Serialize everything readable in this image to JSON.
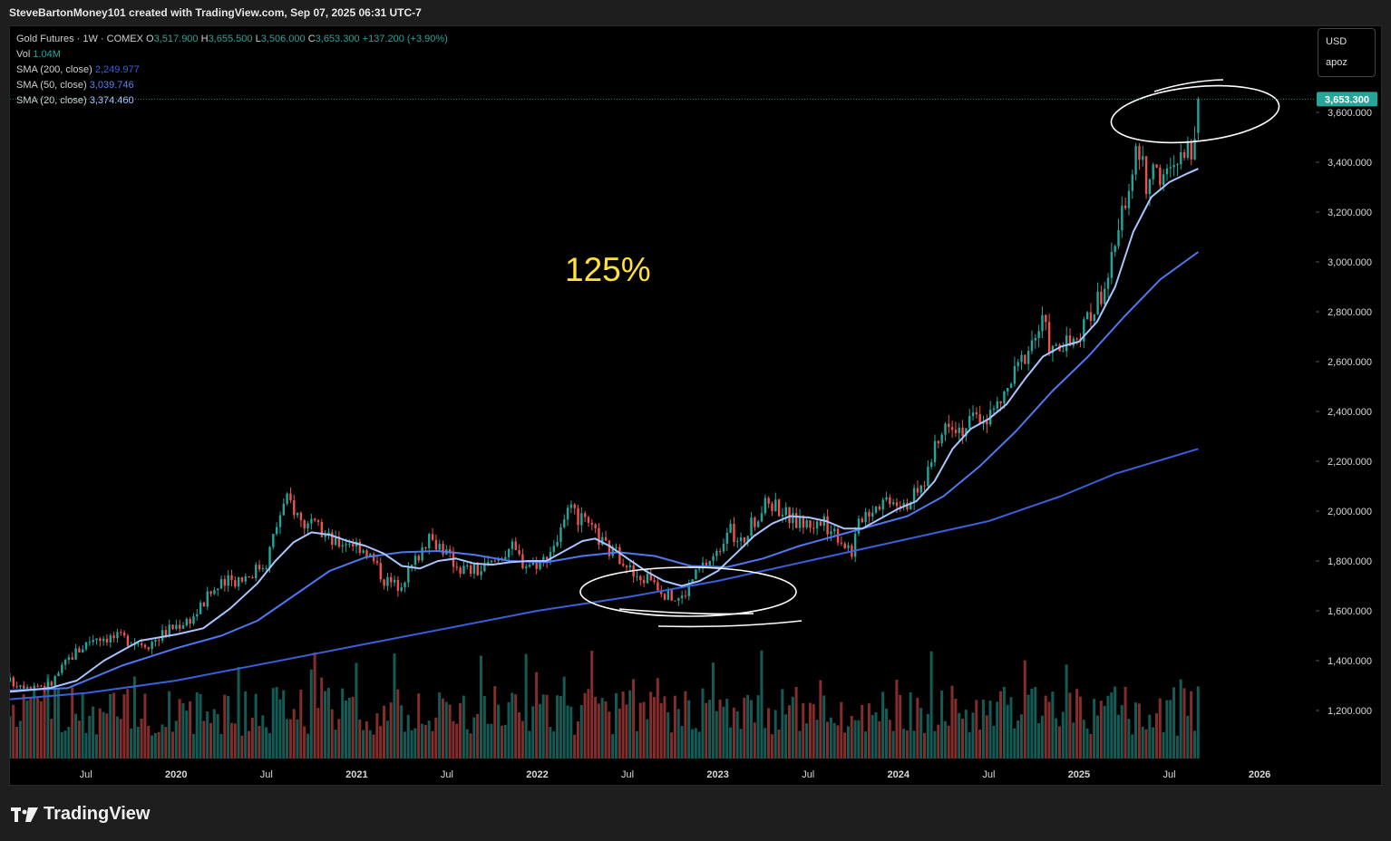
{
  "header": {
    "text": "SteveBartonMoney101 created with TradingView.com, Sep 07, 2025 06:31 UTC-7"
  },
  "legend": {
    "symbol": "Gold Futures · 1W · COMEX",
    "o_label": "O",
    "o_value": "3,517.900",
    "h_label": "H",
    "h_value": "3,655.500",
    "l_label": "L",
    "l_value": "3,506.000",
    "c_label": "C",
    "c_value": "3,653.300",
    "change": "+137.200 (+3.90%)",
    "vol_label": "Vol",
    "vol_value": "1.04M",
    "sma200_label": "SMA (200, close)",
    "sma200_value": "2,249.977",
    "sma50_label": "SMA (50, close)",
    "sma50_value": "3,039.746",
    "sma20_label": "SMA (20, close)",
    "sma20_value": "3,374.460"
  },
  "currency": {
    "code": "USD",
    "unit": "apoz"
  },
  "annotation": {
    "text": "125%"
  },
  "footer": {
    "brand": "TradingView"
  },
  "colors": {
    "up": "#26a69a",
    "down": "#ef5350",
    "sma200": "#3a5fd9",
    "sma50": "#4f78f0",
    "sma20": "#a9c6ff",
    "annotation": "#ffe13a",
    "price_label_bg": "#26a69a"
  },
  "chart_data": {
    "type": "candlestick",
    "timeframe": "1W",
    "current_price_label": "3,653.300",
    "ylim": [
      1000,
      3900
    ],
    "y_ticks": [
      {
        "value": 3600,
        "label": "3,600.000"
      },
      {
        "value": 3400,
        "label": "3,400.000"
      },
      {
        "value": 3200,
        "label": "3,200.000"
      },
      {
        "value": 3000,
        "label": "3,000.000"
      },
      {
        "value": 2800,
        "label": "2,800.000"
      },
      {
        "value": 2600,
        "label": "2,600.000"
      },
      {
        "value": 2400,
        "label": "2,400.000"
      },
      {
        "value": 2200,
        "label": "2,200.000"
      },
      {
        "value": 2000,
        "label": "2,000.000"
      },
      {
        "value": 1800,
        "label": "1,800.000"
      },
      {
        "value": 1600,
        "label": "1,600.000"
      },
      {
        "value": 1400,
        "label": "1,400.000"
      },
      {
        "value": 1200,
        "label": "1,200.000"
      }
    ],
    "x_ticks": [
      {
        "t": 2019.5,
        "label": "Jul",
        "bold": false
      },
      {
        "t": 2020.0,
        "label": "2020",
        "bold": true
      },
      {
        "t": 2020.5,
        "label": "Jul",
        "bold": false
      },
      {
        "t": 2021.0,
        "label": "2021",
        "bold": true
      },
      {
        "t": 2021.5,
        "label": "Jul",
        "bold": false
      },
      {
        "t": 2022.0,
        "label": "2022",
        "bold": true
      },
      {
        "t": 2022.5,
        "label": "Jul",
        "bold": false
      },
      {
        "t": 2023.0,
        "label": "2023",
        "bold": true
      },
      {
        "t": 2023.5,
        "label": "Jul",
        "bold": false
      },
      {
        "t": 2024.0,
        "label": "2024",
        "bold": true
      },
      {
        "t": 2024.5,
        "label": "Jul",
        "bold": false
      },
      {
        "t": 2025.0,
        "label": "2025",
        "bold": true
      },
      {
        "t": 2025.5,
        "label": "Jul",
        "bold": false
      },
      {
        "t": 2026.0,
        "label": "2026",
        "bold": true
      }
    ],
    "xlim": [
      2019.08,
      2026.1
    ],
    "close_path": [
      [
        2019.08,
        1315
      ],
      [
        2019.3,
        1300
      ],
      [
        2019.42,
        1420
      ],
      [
        2019.55,
        1500
      ],
      [
        2019.7,
        1490
      ],
      [
        2019.85,
        1470
      ],
      [
        2019.97,
        1530
      ],
      [
        2020.1,
        1580
      ],
      [
        2020.2,
        1680
      ],
      [
        2020.3,
        1720
      ],
      [
        2020.4,
        1745
      ],
      [
        2020.5,
        1800
      ],
      [
        2020.58,
        2000
      ],
      [
        2020.62,
        2050
      ],
      [
        2020.7,
        1955
      ],
      [
        2020.8,
        1920
      ],
      [
        2020.88,
        1870
      ],
      [
        2020.95,
        1885
      ],
      [
        2021.05,
        1850
      ],
      [
        2021.15,
        1730
      ],
      [
        2021.22,
        1700
      ],
      [
        2021.3,
        1770
      ],
      [
        2021.38,
        1880
      ],
      [
        2021.45,
        1875
      ],
      [
        2021.52,
        1810
      ],
      [
        2021.58,
        1770
      ],
      [
        2021.68,
        1760
      ],
      [
        2021.75,
        1790
      ],
      [
        2021.85,
        1860
      ],
      [
        2021.93,
        1790
      ],
      [
        2022.03,
        1800
      ],
      [
        2022.12,
        1900
      ],
      [
        2022.18,
        2000
      ],
      [
        2022.26,
        1950
      ],
      [
        2022.33,
        1900
      ],
      [
        2022.4,
        1840
      ],
      [
        2022.48,
        1810
      ],
      [
        2022.55,
        1720
      ],
      [
        2022.63,
        1740
      ],
      [
        2022.72,
        1660
      ],
      [
        2022.8,
        1650
      ],
      [
        2022.86,
        1730
      ],
      [
        2022.93,
        1790
      ],
      [
        2023.0,
        1830
      ],
      [
        2023.05,
        1940
      ],
      [
        2023.12,
        1860
      ],
      [
        2023.2,
        1960
      ],
      [
        2023.28,
        2040
      ],
      [
        2023.35,
        2010
      ],
      [
        2023.42,
        1960
      ],
      [
        2023.5,
        1950
      ],
      [
        2023.58,
        1950
      ],
      [
        2023.65,
        1920
      ],
      [
        2023.74,
        1840
      ],
      [
        2023.8,
        1990
      ],
      [
        2023.88,
        2030
      ],
      [
        2023.95,
        2060
      ],
      [
        2024.05,
        2040
      ],
      [
        2024.12,
        2080
      ],
      [
        2024.2,
        2240
      ],
      [
        2024.28,
        2380
      ],
      [
        2024.35,
        2330
      ],
      [
        2024.42,
        2370
      ],
      [
        2024.5,
        2380
      ],
      [
        2024.58,
        2450
      ],
      [
        2024.65,
        2560
      ],
      [
        2024.72,
        2660
      ],
      [
        2024.8,
        2760
      ],
      [
        2024.85,
        2640
      ],
      [
        2024.92,
        2660
      ],
      [
        2025.0,
        2680
      ],
      [
        2025.08,
        2820
      ],
      [
        2025.15,
        2920
      ],
      [
        2025.22,
        3100
      ],
      [
        2025.28,
        3350
      ],
      [
        2025.33,
        3440
      ],
      [
        2025.38,
        3300
      ],
      [
        2025.43,
        3360
      ],
      [
        2025.5,
        3340
      ],
      [
        2025.55,
        3400
      ],
      [
        2025.62,
        3450
      ],
      [
        2025.66,
        3653
      ]
    ],
    "sma20_path": [
      [
        2019.08,
        1275
      ],
      [
        2019.3,
        1290
      ],
      [
        2019.45,
        1320
      ],
      [
        2019.6,
        1400
      ],
      [
        2019.8,
        1480
      ],
      [
        2020.0,
        1505
      ],
      [
        2020.15,
        1530
      ],
      [
        2020.3,
        1610
      ],
      [
        2020.45,
        1710
      ],
      [
        2020.55,
        1800
      ],
      [
        2020.65,
        1875
      ],
      [
        2020.75,
        1915
      ],
      [
        2020.85,
        1905
      ],
      [
        2020.95,
        1880
      ],
      [
        2021.05,
        1860
      ],
      [
        2021.15,
        1830
      ],
      [
        2021.25,
        1780
      ],
      [
        2021.35,
        1770
      ],
      [
        2021.45,
        1800
      ],
      [
        2021.55,
        1810
      ],
      [
        2021.65,
        1790
      ],
      [
        2021.75,
        1785
      ],
      [
        2021.85,
        1795
      ],
      [
        2021.95,
        1800
      ],
      [
        2022.05,
        1800
      ],
      [
        2022.15,
        1840
      ],
      [
        2022.25,
        1880
      ],
      [
        2022.32,
        1890
      ],
      [
        2022.4,
        1860
      ],
      [
        2022.5,
        1810
      ],
      [
        2022.6,
        1760
      ],
      [
        2022.7,
        1720
      ],
      [
        2022.8,
        1700
      ],
      [
        2022.9,
        1720
      ],
      [
        2023.0,
        1760
      ],
      [
        2023.1,
        1830
      ],
      [
        2023.2,
        1900
      ],
      [
        2023.3,
        1950
      ],
      [
        2023.4,
        1980
      ],
      [
        2023.5,
        1975
      ],
      [
        2023.6,
        1960
      ],
      [
        2023.7,
        1930
      ],
      [
        2023.8,
        1930
      ],
      [
        2023.9,
        1970
      ],
      [
        2024.0,
        2010
      ],
      [
        2024.1,
        2040
      ],
      [
        2024.2,
        2120
      ],
      [
        2024.3,
        2250
      ],
      [
        2024.4,
        2330
      ],
      [
        2024.5,
        2370
      ],
      [
        2024.6,
        2430
      ],
      [
        2024.7,
        2530
      ],
      [
        2024.8,
        2620
      ],
      [
        2024.9,
        2660
      ],
      [
        2025.0,
        2680
      ],
      [
        2025.1,
        2760
      ],
      [
        2025.2,
        2900
      ],
      [
        2025.3,
        3120
      ],
      [
        2025.4,
        3260
      ],
      [
        2025.5,
        3320
      ],
      [
        2025.6,
        3355
      ],
      [
        2025.66,
        3374
      ]
    ],
    "sma50_path": [
      [
        2019.08,
        1280
      ],
      [
        2019.4,
        1290
      ],
      [
        2019.7,
        1380
      ],
      [
        2020.0,
        1450
      ],
      [
        2020.25,
        1500
      ],
      [
        2020.45,
        1560
      ],
      [
        2020.65,
        1660
      ],
      [
        2020.85,
        1760
      ],
      [
        2021.05,
        1815
      ],
      [
        2021.25,
        1835
      ],
      [
        2021.45,
        1840
      ],
      [
        2021.65,
        1825
      ],
      [
        2021.85,
        1800
      ],
      [
        2022.05,
        1795
      ],
      [
        2022.25,
        1820
      ],
      [
        2022.45,
        1835
      ],
      [
        2022.65,
        1820
      ],
      [
        2022.85,
        1780
      ],
      [
        2023.05,
        1775
      ],
      [
        2023.25,
        1810
      ],
      [
        2023.45,
        1860
      ],
      [
        2023.65,
        1900
      ],
      [
        2023.85,
        1940
      ],
      [
        2024.05,
        1980
      ],
      [
        2024.25,
        2060
      ],
      [
        2024.45,
        2180
      ],
      [
        2024.65,
        2320
      ],
      [
        2024.85,
        2480
      ],
      [
        2025.05,
        2620
      ],
      [
        2025.25,
        2780
      ],
      [
        2025.45,
        2930
      ],
      [
        2025.66,
        3040
      ]
    ],
    "sma200_path": [
      [
        2019.08,
        1245
      ],
      [
        2019.5,
        1270
      ],
      [
        2020.0,
        1320
      ],
      [
        2020.5,
        1390
      ],
      [
        2021.0,
        1460
      ],
      [
        2021.5,
        1530
      ],
      [
        2022.0,
        1600
      ],
      [
        2022.5,
        1655
      ],
      [
        2023.0,
        1720
      ],
      [
        2023.5,
        1800
      ],
      [
        2024.0,
        1880
      ],
      [
        2024.5,
        1960
      ],
      [
        2024.9,
        2060
      ],
      [
        2025.2,
        2150
      ],
      [
        2025.66,
        2250
      ]
    ],
    "volume": {
      "baseline": 1020,
      "max_height_value": 1400,
      "bars": 344,
      "seed": 17
    }
  }
}
